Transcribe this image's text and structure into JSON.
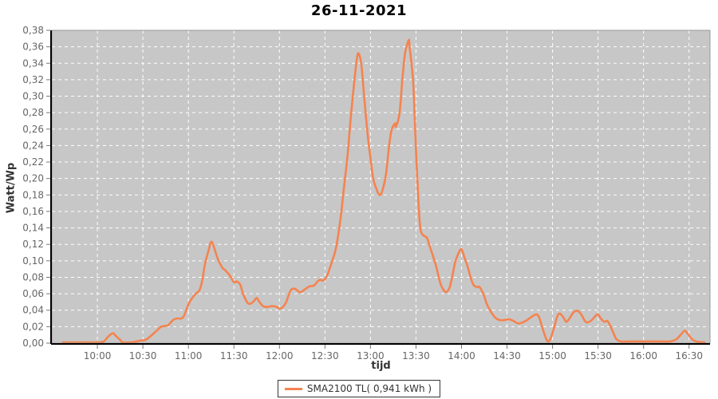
{
  "page": {
    "title": "26-11-2021"
  },
  "colors": {
    "line": "#f5834f",
    "plot_bg": "#c7c7c7",
    "grid": "#ffffff",
    "tick": "#777777",
    "tick_label": "#666666",
    "axis_title": "#333333",
    "title": "#000000",
    "axis_line": "#000000",
    "plot_border": "#999999",
    "legend_border": "#333333",
    "legend_bg": "#ffffff"
  },
  "legend": {
    "entries": [
      {
        "label": "SMA2100 TL( 0,941 kWh )",
        "color": "#f5834f"
      }
    ]
  },
  "chart_data": {
    "type": "line",
    "title": "26-11-2021",
    "xlabel": "tijd",
    "ylabel": "Watt/Wp",
    "xlim": [
      9.5,
      16.73
    ],
    "ylim": [
      0,
      0.38
    ],
    "grid": "white dashed, both axes",
    "legend_position": "bottom-center",
    "x_ticks": [
      {
        "v": 10.0,
        "label": "10:00"
      },
      {
        "v": 10.5,
        "label": "10:30"
      },
      {
        "v": 11.0,
        "label": "11:00"
      },
      {
        "v": 11.5,
        "label": "11:30"
      },
      {
        "v": 12.0,
        "label": "12:00"
      },
      {
        "v": 12.5,
        "label": "12:30"
      },
      {
        "v": 13.0,
        "label": "13:00"
      },
      {
        "v": 13.5,
        "label": "13:30"
      },
      {
        "v": 14.0,
        "label": "14:00"
      },
      {
        "v": 14.5,
        "label": "14:30"
      },
      {
        "v": 15.0,
        "label": "15:00"
      },
      {
        "v": 15.5,
        "label": "15:30"
      },
      {
        "v": 16.0,
        "label": "16:00"
      },
      {
        "v": 16.5,
        "label": "16:30"
      }
    ],
    "y_ticks": [
      {
        "v": 0.0,
        "label": "0,00"
      },
      {
        "v": 0.02,
        "label": "0,02"
      },
      {
        "v": 0.04,
        "label": "0,04"
      },
      {
        "v": 0.06,
        "label": "0,06"
      },
      {
        "v": 0.08,
        "label": "0,08"
      },
      {
        "v": 0.1,
        "label": "0,10"
      },
      {
        "v": 0.12,
        "label": "0,12"
      },
      {
        "v": 0.14,
        "label": "0,14"
      },
      {
        "v": 0.16,
        "label": "0,16"
      },
      {
        "v": 0.18,
        "label": "0,18"
      },
      {
        "v": 0.2,
        "label": "0,20"
      },
      {
        "v": 0.22,
        "label": "0,22"
      },
      {
        "v": 0.24,
        "label": "0,24"
      },
      {
        "v": 0.26,
        "label": "0,26"
      },
      {
        "v": 0.28,
        "label": "0,28"
      },
      {
        "v": 0.3,
        "label": "0,30"
      },
      {
        "v": 0.32,
        "label": "0,32"
      },
      {
        "v": 0.34,
        "label": "0,34"
      },
      {
        "v": 0.36,
        "label": "0,36"
      },
      {
        "v": 0.38,
        "label": "0,38"
      }
    ],
    "series": [
      {
        "name": "SMA2100 TL( 0,941 kWh )",
        "color": "#f5834f",
        "points": [
          [
            9.62,
            0.001
          ],
          [
            9.75,
            0.001
          ],
          [
            9.92,
            0.001
          ],
          [
            10.0,
            0.001
          ],
          [
            10.07,
            0.002
          ],
          [
            10.12,
            0.008
          ],
          [
            10.17,
            0.012
          ],
          [
            10.2,
            0.009
          ],
          [
            10.25,
            0.004
          ],
          [
            10.28,
            0.001
          ],
          [
            10.37,
            0.001
          ],
          [
            10.43,
            0.002
          ],
          [
            10.47,
            0.003
          ],
          [
            10.53,
            0.004
          ],
          [
            10.58,
            0.008
          ],
          [
            10.63,
            0.013
          ],
          [
            10.67,
            0.017
          ],
          [
            10.7,
            0.02
          ],
          [
            10.75,
            0.021
          ],
          [
            10.78,
            0.022
          ],
          [
            10.83,
            0.028
          ],
          [
            10.87,
            0.03
          ],
          [
            10.92,
            0.03
          ],
          [
            10.95,
            0.033
          ],
          [
            11.0,
            0.047
          ],
          [
            11.03,
            0.053
          ],
          [
            11.08,
            0.06
          ],
          [
            11.12,
            0.064
          ],
          [
            11.15,
            0.075
          ],
          [
            11.18,
            0.095
          ],
          [
            11.22,
            0.112
          ],
          [
            11.25,
            0.123
          ],
          [
            11.28,
            0.117
          ],
          [
            11.32,
            0.103
          ],
          [
            11.37,
            0.092
          ],
          [
            11.4,
            0.089
          ],
          [
            11.45,
            0.083
          ],
          [
            11.5,
            0.074
          ],
          [
            11.53,
            0.075
          ],
          [
            11.57,
            0.071
          ],
          [
            11.6,
            0.06
          ],
          [
            11.65,
            0.049
          ],
          [
            11.68,
            0.048
          ],
          [
            11.72,
            0.051
          ],
          [
            11.75,
            0.055
          ],
          [
            11.78,
            0.05
          ],
          [
            11.82,
            0.045
          ],
          [
            11.87,
            0.044
          ],
          [
            11.92,
            0.045
          ],
          [
            11.97,
            0.044
          ],
          [
            12.0,
            0.042
          ],
          [
            12.03,
            0.043
          ],
          [
            12.07,
            0.049
          ],
          [
            12.1,
            0.058
          ],
          [
            12.13,
            0.065
          ],
          [
            12.17,
            0.066
          ],
          [
            12.22,
            0.062
          ],
          [
            12.25,
            0.063
          ],
          [
            12.3,
            0.067
          ],
          [
            12.33,
            0.069
          ],
          [
            12.38,
            0.07
          ],
          [
            12.42,
            0.075
          ],
          [
            12.45,
            0.077
          ],
          [
            12.48,
            0.076
          ],
          [
            12.52,
            0.081
          ],
          [
            12.55,
            0.09
          ],
          [
            12.58,
            0.1
          ],
          [
            12.62,
            0.115
          ],
          [
            12.67,
            0.15
          ],
          [
            12.7,
            0.18
          ],
          [
            12.75,
            0.23
          ],
          [
            12.78,
            0.27
          ],
          [
            12.82,
            0.315
          ],
          [
            12.85,
            0.345
          ],
          [
            12.87,
            0.352
          ],
          [
            12.9,
            0.338
          ],
          [
            12.93,
            0.3
          ],
          [
            12.97,
            0.252
          ],
          [
            13.0,
            0.225
          ],
          [
            13.03,
            0.2
          ],
          [
            13.07,
            0.186
          ],
          [
            13.1,
            0.18
          ],
          [
            13.13,
            0.185
          ],
          [
            13.17,
            0.205
          ],
          [
            13.2,
            0.235
          ],
          [
            13.23,
            0.258
          ],
          [
            13.27,
            0.267
          ],
          [
            13.28,
            0.263
          ],
          [
            13.32,
            0.28
          ],
          [
            13.35,
            0.32
          ],
          [
            13.38,
            0.352
          ],
          [
            13.42,
            0.368
          ],
          [
            13.43,
            0.36
          ],
          [
            13.47,
            0.315
          ],
          [
            13.5,
            0.235
          ],
          [
            13.53,
            0.165
          ],
          [
            13.55,
            0.138
          ],
          [
            13.58,
            0.131
          ],
          [
            13.62,
            0.128
          ],
          [
            13.65,
            0.118
          ],
          [
            13.68,
            0.108
          ],
          [
            13.72,
            0.094
          ],
          [
            13.75,
            0.08
          ],
          [
            13.78,
            0.069
          ],
          [
            13.83,
            0.062
          ],
          [
            13.87,
            0.068
          ],
          [
            13.9,
            0.082
          ],
          [
            13.93,
            0.098
          ],
          [
            13.97,
            0.11
          ],
          [
            14.0,
            0.114
          ],
          [
            14.03,
            0.105
          ],
          [
            14.07,
            0.092
          ],
          [
            14.1,
            0.08
          ],
          [
            14.13,
            0.071
          ],
          [
            14.17,
            0.068
          ],
          [
            14.2,
            0.068
          ],
          [
            14.25,
            0.057
          ],
          [
            14.28,
            0.047
          ],
          [
            14.33,
            0.037
          ],
          [
            14.37,
            0.031
          ],
          [
            14.42,
            0.028
          ],
          [
            14.47,
            0.028
          ],
          [
            14.52,
            0.029
          ],
          [
            14.57,
            0.027
          ],
          [
            14.62,
            0.024
          ],
          [
            14.67,
            0.025
          ],
          [
            14.72,
            0.028
          ],
          [
            14.77,
            0.032
          ],
          [
            14.82,
            0.035
          ],
          [
            14.85,
            0.032
          ],
          [
            14.88,
            0.022
          ],
          [
            14.92,
            0.008
          ],
          [
            14.95,
            0.002
          ],
          [
            14.98,
            0.006
          ],
          [
            15.02,
            0.02
          ],
          [
            15.05,
            0.032
          ],
          [
            15.08,
            0.036
          ],
          [
            15.12,
            0.031
          ],
          [
            15.15,
            0.026
          ],
          [
            15.18,
            0.029
          ],
          [
            15.22,
            0.036
          ],
          [
            15.25,
            0.039
          ],
          [
            15.28,
            0.039
          ],
          [
            15.32,
            0.034
          ],
          [
            15.35,
            0.028
          ],
          [
            15.38,
            0.025
          ],
          [
            15.43,
            0.028
          ],
          [
            15.47,
            0.033
          ],
          [
            15.5,
            0.035
          ],
          [
            15.53,
            0.03
          ],
          [
            15.57,
            0.026
          ],
          [
            15.6,
            0.027
          ],
          [
            15.63,
            0.022
          ],
          [
            15.67,
            0.012
          ],
          [
            15.7,
            0.005
          ],
          [
            15.75,
            0.002
          ],
          [
            15.83,
            0.002
          ],
          [
            16.0,
            0.002
          ],
          [
            16.17,
            0.002
          ],
          [
            16.28,
            0.002
          ],
          [
            16.35,
            0.004
          ],
          [
            16.4,
            0.009
          ],
          [
            16.45,
            0.015
          ],
          [
            16.48,
            0.012
          ],
          [
            16.53,
            0.005
          ],
          [
            16.58,
            0.002
          ],
          [
            16.67,
            0.001
          ]
        ]
      }
    ]
  }
}
